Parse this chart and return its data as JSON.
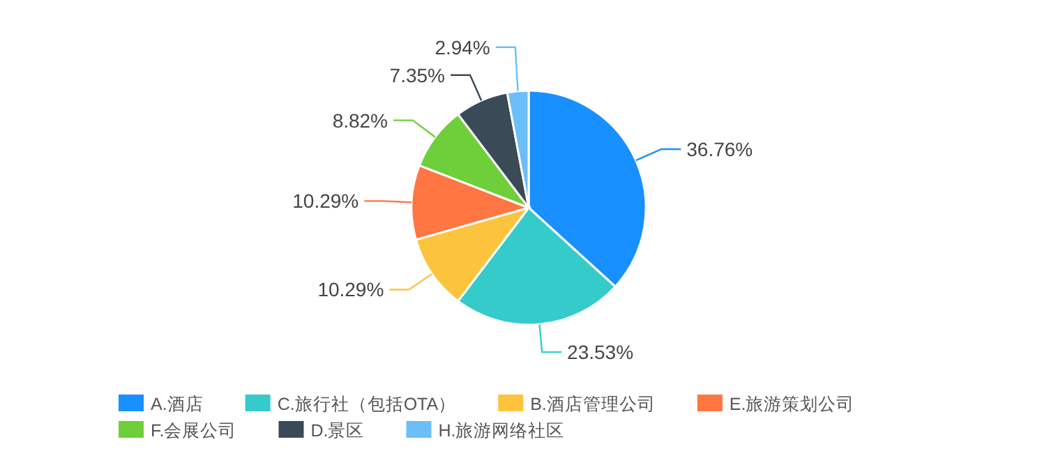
{
  "chart_data": {
    "type": "pie",
    "categories": [
      "A.酒店",
      "C.旅行社（包括OTA）",
      "B.酒店管理公司",
      "E.旅游策划公司",
      "F.会展公司",
      "D.景区",
      "H.旅游网络社区"
    ],
    "values": [
      36.76,
      23.53,
      10.29,
      10.29,
      8.82,
      7.35,
      2.94
    ],
    "value_labels": [
      "36.76%",
      "23.53%",
      "10.29%",
      "10.29%",
      "8.82%",
      "7.35%",
      "2.94%"
    ],
    "colors": [
      "#1890ff",
      "#36cbcb",
      "#fbc43c",
      "#ff7643",
      "#6fcf3a",
      "#3a4a56",
      "#6cbef8"
    ],
    "legend": "bottom"
  }
}
